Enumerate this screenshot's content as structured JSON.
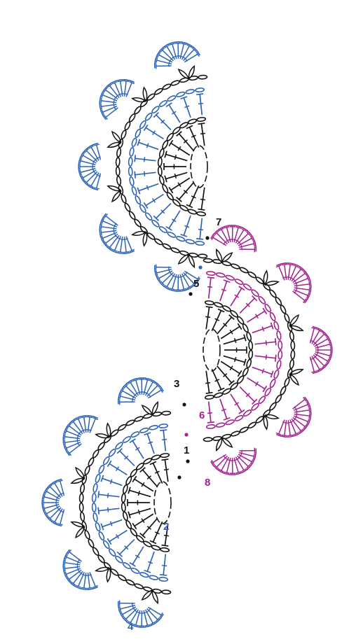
{
  "labels": {
    "row1": "1",
    "row2": "2",
    "row3": "3",
    "row4": "4",
    "row5": "5",
    "row6": "6",
    "row7": "7",
    "row8": "8"
  },
  "colors": {
    "black": "#141414",
    "blue": "#2f63b6",
    "magenta": "#a2238f",
    "background": "#ffffff"
  },
  "motifs": [
    {
      "name": "motif-top",
      "color_outer": "blue",
      "facing": "left"
    },
    {
      "name": "motif-middle",
      "color_outer": "magenta",
      "facing": "right"
    },
    {
      "name": "motif-bottom",
      "color_outer": "blue",
      "facing": "left"
    }
  ]
}
